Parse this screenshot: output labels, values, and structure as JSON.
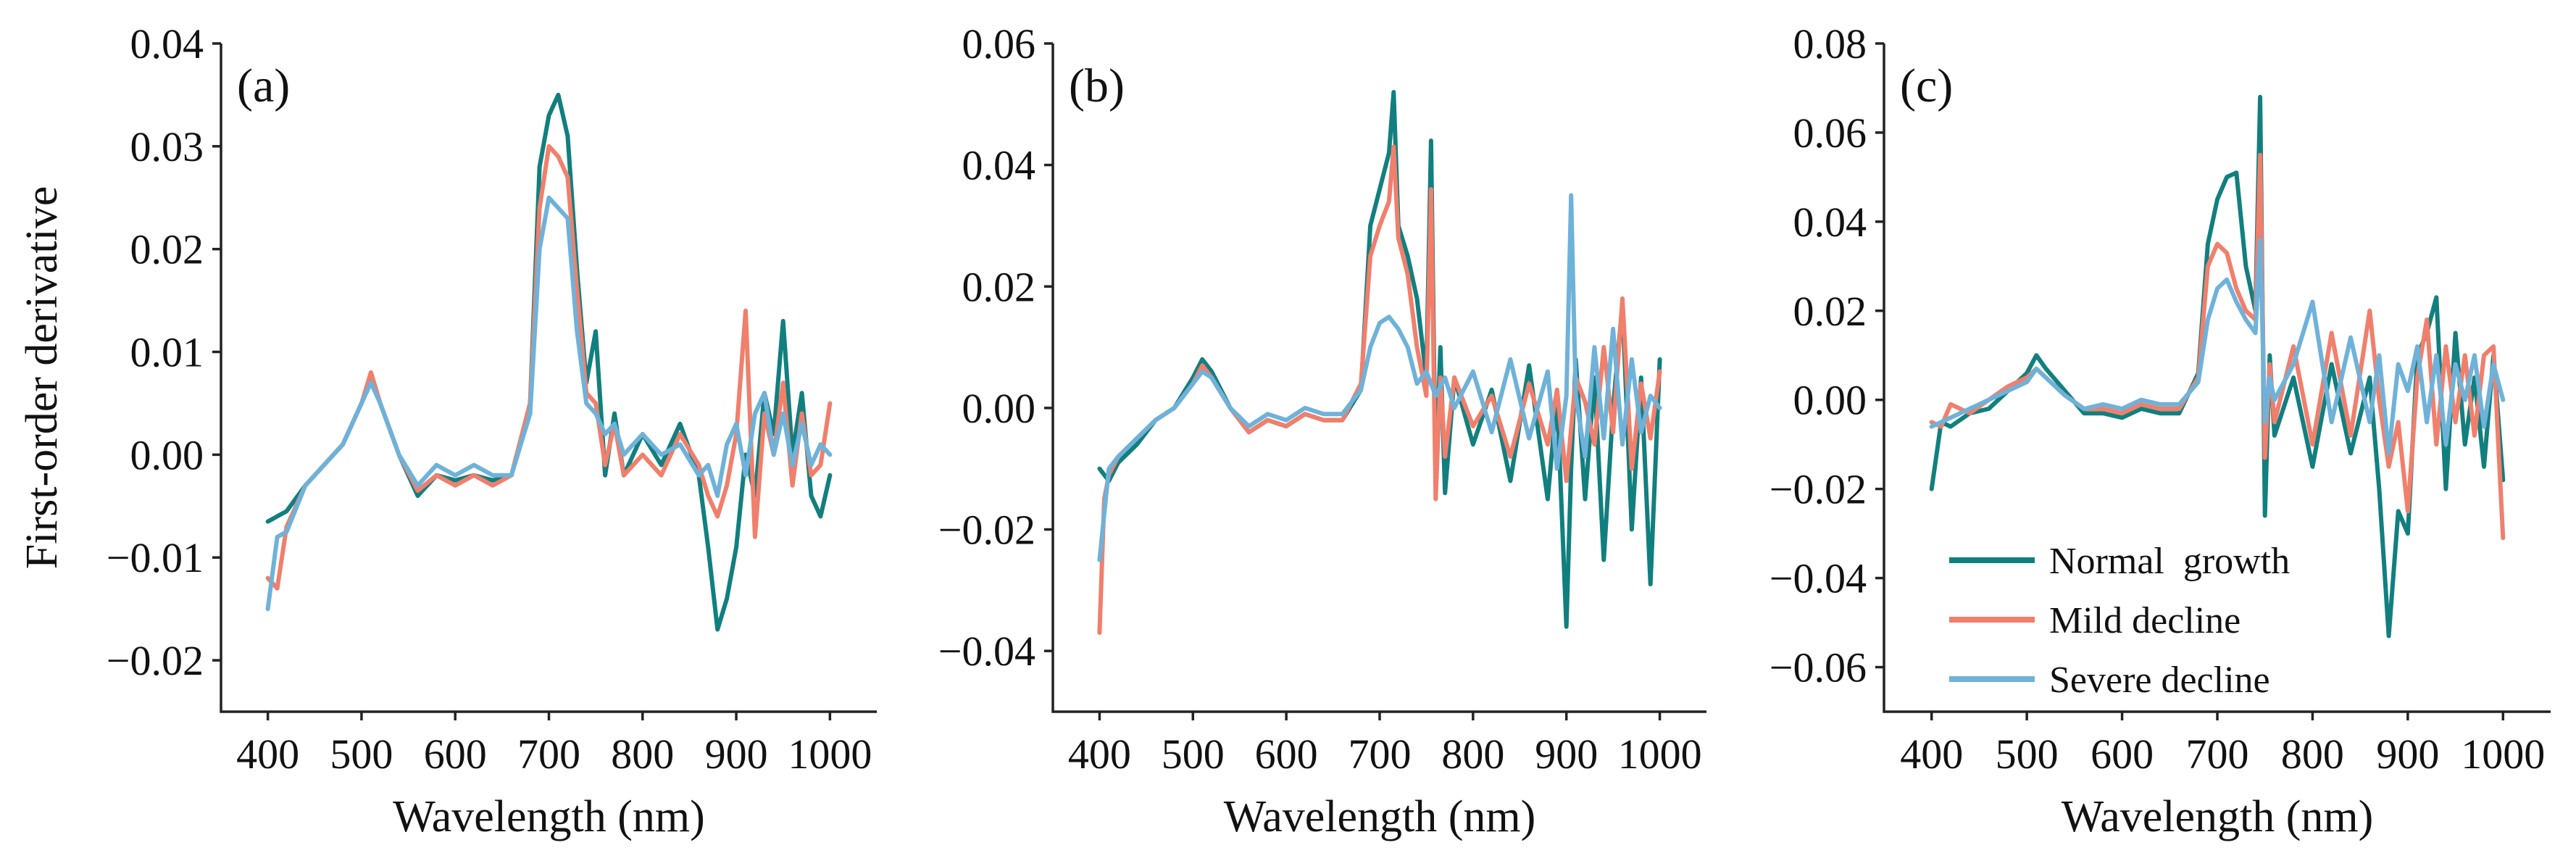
{
  "colors": {
    "normal": "#127f7f",
    "mild": "#f07f6c",
    "severe": "#6fb2d9"
  },
  "legend": [
    {
      "key": "normal",
      "label": "Normal  growth"
    },
    {
      "key": "mild",
      "label": "Mild decline"
    },
    {
      "key": "severe",
      "label": "Severe decline"
    }
  ],
  "chart_data": [
    {
      "type": "line",
      "panel_label": "(a)",
      "xlabel": "Wavelength (nm)",
      "ylabel": "First-order derivative",
      "xlim": [
        350,
        1050
      ],
      "ylim": [
        -0.025,
        0.04
      ],
      "xticks": [
        400,
        500,
        600,
        700,
        800,
        900,
        1000
      ],
      "xtick_labels": [
        "400",
        "500",
        "600",
        "700",
        "800",
        "900",
        "1000"
      ],
      "yticks": [
        -0.02,
        -0.01,
        0.0,
        0.01,
        0.02,
        0.03,
        0.04
      ],
      "ytick_labels": [
        "−0.02",
        "−0.01",
        "0.00",
        "0.01",
        "0.02",
        "0.03",
        "0.04"
      ],
      "series": [
        {
          "name": "Normal  growth",
          "key": "normal",
          "x": [
            400,
            420,
            440,
            460,
            480,
            500,
            510,
            520,
            540,
            560,
            580,
            600,
            620,
            640,
            660,
            680,
            690,
            700,
            710,
            720,
            730,
            740,
            750,
            760,
            770,
            780,
            800,
            820,
            840,
            860,
            870,
            880,
            890,
            900,
            910,
            920,
            930,
            940,
            950,
            960,
            970,
            980,
            990,
            1000
          ],
          "y": [
            -0.0065,
            -0.0055,
            -0.003,
            -0.001,
            0.001,
            0.005,
            0.0075,
            0.005,
            0.0,
            -0.004,
            -0.002,
            -0.0025,
            -0.002,
            -0.0025,
            -0.002,
            0.005,
            0.028,
            0.033,
            0.035,
            0.031,
            0.018,
            0.007,
            0.012,
            -0.002,
            0.004,
            -0.002,
            0.002,
            -0.001,
            0.003,
            -0.002,
            -0.009,
            -0.017,
            -0.014,
            -0.009,
            0.0,
            -0.004,
            0.006,
            0.002,
            0.013,
            0.0,
            0.006,
            -0.004,
            -0.006,
            -0.002
          ]
        },
        {
          "name": "Mild decline",
          "key": "mild",
          "x": [
            400,
            410,
            420,
            440,
            460,
            480,
            500,
            510,
            520,
            540,
            560,
            580,
            600,
            620,
            640,
            660,
            680,
            690,
            700,
            710,
            720,
            730,
            740,
            750,
            760,
            770,
            780,
            800,
            820,
            840,
            860,
            870,
            880,
            890,
            900,
            910,
            920,
            930,
            940,
            950,
            960,
            970,
            980,
            990,
            1000
          ],
          "y": [
            -0.012,
            -0.013,
            -0.007,
            -0.003,
            -0.001,
            0.001,
            0.005,
            0.008,
            0.005,
            0.0,
            -0.0035,
            -0.002,
            -0.003,
            -0.002,
            -0.003,
            -0.002,
            0.005,
            0.024,
            0.03,
            0.029,
            0.027,
            0.016,
            0.006,
            0.005,
            -0.001,
            0.003,
            -0.002,
            0.0,
            -0.002,
            0.002,
            -0.001,
            -0.004,
            -0.006,
            -0.003,
            0.002,
            0.014,
            -0.008,
            0.004,
            0.0,
            0.007,
            -0.003,
            0.004,
            -0.002,
            -0.001,
            0.005
          ]
        },
        {
          "name": "Severe decline",
          "key": "severe",
          "x": [
            400,
            410,
            420,
            440,
            460,
            480,
            500,
            510,
            520,
            540,
            560,
            580,
            600,
            620,
            640,
            660,
            680,
            690,
            700,
            710,
            720,
            730,
            740,
            750,
            760,
            770,
            780,
            800,
            820,
            840,
            860,
            870,
            880,
            890,
            900,
            910,
            920,
            930,
            940,
            950,
            960,
            970,
            980,
            990,
            1000
          ],
          "y": [
            -0.015,
            -0.008,
            -0.0075,
            -0.003,
            -0.001,
            0.001,
            0.005,
            0.007,
            0.005,
            0.0,
            -0.003,
            -0.001,
            -0.002,
            -0.001,
            -0.002,
            -0.002,
            0.004,
            0.02,
            0.025,
            0.024,
            0.023,
            0.012,
            0.005,
            0.004,
            0.002,
            0.003,
            0.0,
            0.002,
            0.0,
            0.001,
            -0.002,
            -0.001,
            -0.004,
            0.001,
            0.003,
            -0.002,
            0.004,
            0.006,
            0.0,
            0.004,
            -0.001,
            0.003,
            -0.001,
            0.001,
            0.0
          ]
        }
      ]
    },
    {
      "type": "line",
      "panel_label": "(b)",
      "xlabel": "Wavelength (nm)",
      "ylabel": "",
      "xlim": [
        350,
        1050
      ],
      "ylim": [
        -0.05,
        0.06
      ],
      "xticks": [
        400,
        500,
        600,
        700,
        800,
        900,
        1000
      ],
      "xtick_labels": [
        "400",
        "500",
        "600",
        "700",
        "800",
        "900",
        "1000"
      ],
      "yticks": [
        -0.04,
        -0.02,
        0.0,
        0.02,
        0.04,
        0.06
      ],
      "ytick_labels": [
        "−0.04",
        "−0.02",
        "0.00",
        "0.02",
        "0.04",
        "0.06"
      ],
      "series": [
        {
          "name": "Normal  growth",
          "key": "normal",
          "x": [
            400,
            410,
            420,
            440,
            460,
            480,
            500,
            510,
            520,
            540,
            560,
            580,
            600,
            620,
            640,
            660,
            680,
            690,
            700,
            710,
            715,
            720,
            730,
            740,
            750,
            755,
            760,
            765,
            770,
            780,
            800,
            820,
            840,
            860,
            880,
            890,
            900,
            905,
            910,
            920,
            930,
            940,
            950,
            960,
            970,
            980,
            990,
            1000
          ],
          "y": [
            -0.01,
            -0.012,
            -0.009,
            -0.006,
            -0.002,
            0.0,
            0.005,
            0.008,
            0.006,
            0.0,
            -0.004,
            -0.002,
            -0.003,
            -0.001,
            -0.002,
            -0.002,
            0.003,
            0.03,
            0.036,
            0.042,
            0.052,
            0.03,
            0.025,
            0.018,
            0.005,
            0.044,
            -0.012,
            0.01,
            -0.014,
            0.005,
            -0.006,
            0.003,
            -0.012,
            0.007,
            -0.015,
            0.002,
            -0.036,
            -0.01,
            0.008,
            -0.015,
            0.005,
            -0.025,
            0.0,
            0.017,
            -0.02,
            0.005,
            -0.029,
            0.008
          ]
        },
        {
          "name": "Mild decline",
          "key": "mild",
          "x": [
            400,
            405,
            410,
            420,
            440,
            460,
            480,
            500,
            510,
            520,
            540,
            560,
            580,
            600,
            620,
            640,
            660,
            680,
            690,
            700,
            710,
            715,
            720,
            730,
            740,
            750,
            755,
            760,
            765,
            770,
            780,
            800,
            820,
            840,
            860,
            880,
            890,
            900,
            910,
            920,
            930,
            940,
            950,
            960,
            970,
            980,
            990,
            1000
          ],
          "y": [
            -0.037,
            -0.015,
            -0.011,
            -0.008,
            -0.005,
            -0.002,
            0.0,
            0.004,
            0.007,
            0.005,
            0.0,
            -0.004,
            -0.002,
            -0.003,
            -0.001,
            -0.002,
            -0.002,
            0.004,
            0.025,
            0.03,
            0.034,
            0.043,
            0.028,
            0.022,
            0.01,
            0.002,
            0.036,
            -0.015,
            0.005,
            -0.008,
            0.005,
            -0.003,
            0.002,
            -0.008,
            0.004,
            -0.006,
            0.003,
            -0.012,
            0.005,
            0.001,
            -0.006,
            0.01,
            -0.004,
            0.018,
            -0.01,
            0.004,
            -0.005,
            0.006
          ]
        },
        {
          "name": "Severe decline",
          "key": "severe",
          "x": [
            400,
            410,
            420,
            440,
            460,
            480,
            500,
            510,
            520,
            540,
            560,
            580,
            600,
            620,
            640,
            660,
            680,
            690,
            700,
            710,
            720,
            730,
            740,
            750,
            760,
            770,
            780,
            800,
            820,
            840,
            860,
            880,
            890,
            900,
            905,
            910,
            920,
            930,
            940,
            950,
            960,
            970,
            980,
            990,
            1000
          ],
          "y": [
            -0.025,
            -0.01,
            -0.008,
            -0.005,
            -0.002,
            0.0,
            0.004,
            0.006,
            0.005,
            0.0,
            -0.003,
            -0.001,
            -0.002,
            0.0,
            -0.001,
            -0.001,
            0.003,
            0.01,
            0.014,
            0.015,
            0.013,
            0.01,
            0.004,
            0.006,
            0.002,
            0.005,
            0.0,
            0.006,
            -0.004,
            0.008,
            -0.005,
            0.006,
            -0.01,
            0.002,
            0.035,
            0.002,
            -0.008,
            0.01,
            -0.005,
            0.013,
            -0.006,
            0.008,
            -0.004,
            0.002,
            0.0
          ]
        }
      ]
    },
    {
      "type": "line",
      "panel_label": "(c)",
      "xlabel": "Wavelength (nm)",
      "ylabel": "",
      "xlim": [
        350,
        1050
      ],
      "ylim": [
        -0.07,
        0.08
      ],
      "xticks": [
        400,
        500,
        600,
        700,
        800,
        900,
        1000
      ],
      "xtick_labels": [
        "400",
        "500",
        "600",
        "700",
        "800",
        "900",
        "1000"
      ],
      "yticks": [
        -0.06,
        -0.04,
        -0.02,
        0.0,
        0.02,
        0.04,
        0.06,
        0.08
      ],
      "ytick_labels": [
        "−0.06",
        "−0.04",
        "−0.02",
        "0.00",
        "0.02",
        "0.04",
        "0.06",
        "0.08"
      ],
      "series": [
        {
          "name": "Normal  growth",
          "key": "normal",
          "x": [
            400,
            410,
            420,
            440,
            460,
            480,
            500,
            510,
            520,
            540,
            560,
            580,
            600,
            620,
            640,
            660,
            680,
            690,
            700,
            710,
            720,
            730,
            740,
            745,
            750,
            755,
            760,
            780,
            800,
            820,
            840,
            860,
            870,
            880,
            890,
            900,
            910,
            920,
            930,
            940,
            950,
            960,
            970,
            980,
            990,
            1000
          ],
          "y": [
            -0.02,
            -0.005,
            -0.006,
            -0.003,
            -0.002,
            0.002,
            0.006,
            0.01,
            0.007,
            0.002,
            -0.003,
            -0.003,
            -0.004,
            -0.002,
            -0.003,
            -0.003,
            0.006,
            0.035,
            0.045,
            0.05,
            0.051,
            0.03,
            0.02,
            0.068,
            -0.026,
            0.01,
            -0.008,
            0.005,
            -0.015,
            0.008,
            -0.012,
            0.005,
            -0.02,
            -0.053,
            -0.025,
            -0.03,
            0.01,
            0.015,
            0.023,
            -0.02,
            0.015,
            -0.01,
            0.005,
            -0.015,
            0.01,
            -0.018
          ]
        },
        {
          "name": "Mild decline",
          "key": "mild",
          "x": [
            400,
            410,
            420,
            440,
            460,
            480,
            500,
            510,
            520,
            540,
            560,
            580,
            600,
            620,
            640,
            660,
            680,
            690,
            700,
            710,
            720,
            730,
            740,
            745,
            750,
            755,
            760,
            780,
            800,
            820,
            840,
            860,
            870,
            880,
            890,
            900,
            910,
            920,
            930,
            940,
            950,
            960,
            970,
            980,
            990,
            1000
          ],
          "y": [
            -0.005,
            -0.006,
            -0.001,
            -0.003,
            0.0,
            0.003,
            0.005,
            0.007,
            0.005,
            0.001,
            -0.002,
            -0.002,
            -0.003,
            -0.001,
            -0.002,
            -0.002,
            0.005,
            0.03,
            0.035,
            0.033,
            0.025,
            0.02,
            0.018,
            0.055,
            -0.013,
            0.008,
            -0.005,
            0.012,
            -0.01,
            0.015,
            -0.008,
            0.02,
            0.0,
            -0.015,
            -0.005,
            -0.025,
            0.005,
            0.018,
            -0.01,
            0.012,
            -0.005,
            0.01,
            -0.008,
            0.01,
            0.012,
            -0.031
          ]
        },
        {
          "name": "Severe decline",
          "key": "severe",
          "x": [
            400,
            410,
            420,
            440,
            460,
            480,
            500,
            510,
            520,
            540,
            560,
            580,
            600,
            620,
            640,
            660,
            680,
            690,
            700,
            710,
            720,
            730,
            740,
            745,
            750,
            755,
            760,
            780,
            800,
            820,
            840,
            860,
            870,
            880,
            890,
            900,
            910,
            920,
            930,
            940,
            950,
            960,
            970,
            980,
            990,
            1000
          ],
          "y": [
            -0.006,
            -0.005,
            -0.004,
            -0.002,
            0.0,
            0.002,
            0.004,
            0.007,
            0.005,
            0.001,
            -0.002,
            -0.001,
            -0.002,
            0.0,
            -0.001,
            -0.001,
            0.004,
            0.018,
            0.025,
            0.027,
            0.022,
            0.018,
            0.015,
            0.036,
            -0.005,
            0.005,
            0.0,
            0.008,
            0.022,
            -0.005,
            0.014,
            -0.005,
            0.01,
            -0.012,
            0.008,
            0.002,
            0.012,
            -0.005,
            0.01,
            -0.01,
            0.008,
            0.0,
            0.01,
            -0.006,
            0.008,
            0.0
          ]
        }
      ]
    }
  ]
}
